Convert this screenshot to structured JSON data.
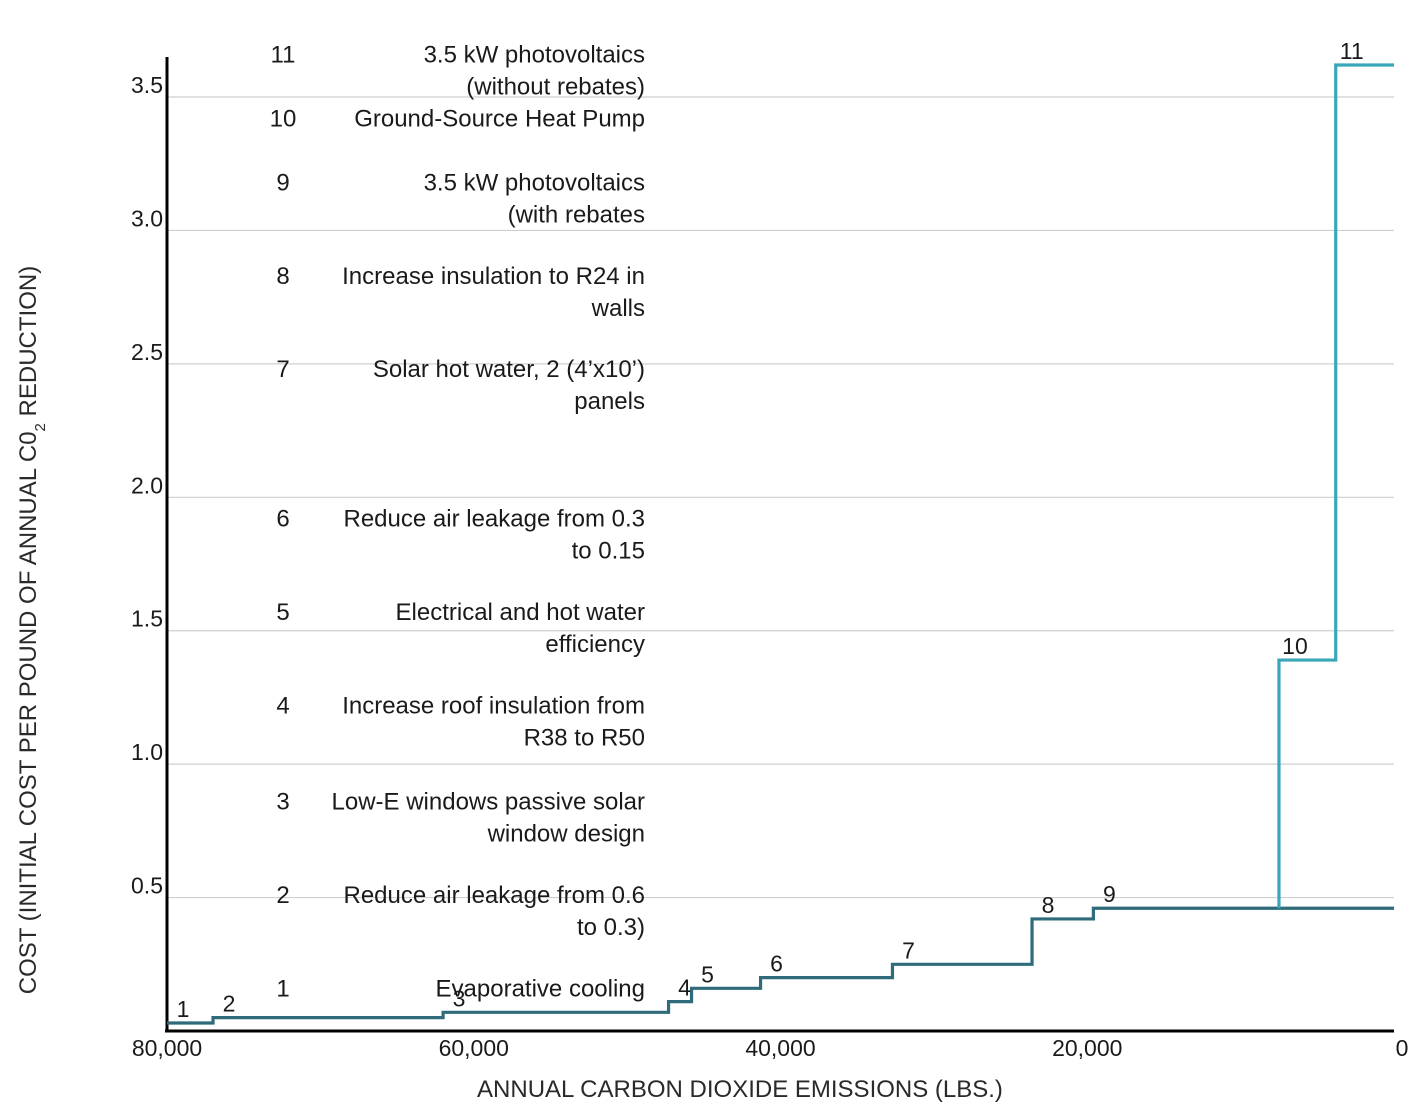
{
  "chart_data": {
    "type": "line",
    "subtype": "step",
    "title": "",
    "xlabel": "ANNUAL CARBON DIOXIDE EMISSIONS (LBS.)",
    "ylabel_parts": {
      "before": "COST (INITIAL COST PER POUND OF ANNUAL C0",
      "subscript": "2",
      "after": " REDUCTION)"
    },
    "xlim": [
      80000,
      0
    ],
    "ylim": [
      0,
      3.65
    ],
    "x_reversed": true,
    "grid": "horizontal",
    "x_ticks": [
      {
        "value": 80000,
        "label": "80,000"
      },
      {
        "value": 60000,
        "label": "60,000"
      },
      {
        "value": 40000,
        "label": "40,000"
      },
      {
        "value": 20000,
        "label": "20,000"
      },
      {
        "value": 0,
        "label": "0"
      }
    ],
    "y_ticks": [
      {
        "value": 0.5,
        "label": "0.5"
      },
      {
        "value": 1.0,
        "label": "1.0"
      },
      {
        "value": 1.5,
        "label": "1.5"
      },
      {
        "value": 2.0,
        "label": "2.0"
      },
      {
        "value": 2.5,
        "label": "2.5"
      },
      {
        "value": 3.0,
        "label": "3.0"
      },
      {
        "value": 3.5,
        "label": "3.5"
      }
    ],
    "steps": [
      {
        "label": "1",
        "x_start": 80000,
        "x_end": 77000,
        "cost": 0.03
      },
      {
        "label": "2",
        "x_start": 77000,
        "x_end": 62000,
        "cost": 0.05
      },
      {
        "label": "3",
        "x_start": 62000,
        "x_end": 47300,
        "cost": 0.07
      },
      {
        "label": "4",
        "x_start": 47300,
        "x_end": 45800,
        "cost": 0.11
      },
      {
        "label": "5",
        "x_start": 45800,
        "x_end": 41300,
        "cost": 0.16
      },
      {
        "label": "6",
        "x_start": 41300,
        "x_end": 32700,
        "cost": 0.2
      },
      {
        "label": "7",
        "x_start": 32700,
        "x_end": 23600,
        "cost": 0.25
      },
      {
        "label": "8",
        "x_start": 23600,
        "x_end": 19600,
        "cost": 0.42
      },
      {
        "label": "9",
        "x_start": 19600,
        "x_end": 0,
        "cost": 0.46
      },
      {
        "label": "10",
        "x_start": 7500,
        "x_end": 3800,
        "cost": 1.39
      },
      {
        "label": "11",
        "x_start": 3800,
        "x_end": 0,
        "cost": 3.62
      }
    ],
    "branch_color": "#3aa6b9",
    "main_color": "#2f6b7a",
    "legend": [
      {
        "num": "1",
        "lines": [
          "Evaporative cooling"
        ],
        "y": 0.13
      },
      {
        "num": "2",
        "lines": [
          "Reduce air leakage from 0.6",
          "to 0.3)"
        ],
        "y": 0.48
      },
      {
        "num": "3",
        "lines": [
          "Low-E windows passive solar",
          "window design"
        ],
        "y": 0.83
      },
      {
        "num": "4",
        "lines": [
          "Increase roof insulation from",
          "R38 to R50"
        ],
        "y": 1.19
      },
      {
        "num": "5",
        "lines": [
          "Electrical and hot water",
          "efficiency"
        ],
        "y": 1.54
      },
      {
        "num": "6",
        "lines": [
          "Reduce air leakage from 0.3",
          "to 0.15"
        ],
        "y": 1.89
      },
      {
        "num": "7",
        "lines": [
          "Solar hot water, 2 (4’x10’)",
          "panels"
        ],
        "y": 2.45
      },
      {
        "num": "8",
        "lines": [
          "Increase insulation to R24 in",
          "walls"
        ],
        "y": 2.8
      },
      {
        "num": "9",
        "lines": [
          "3.5 kW photovoltaics",
          "(with rebates"
        ],
        "y": 3.15
      },
      {
        "num": "10",
        "lines": [
          "Ground-Source Heat Pump"
        ],
        "y": 3.39
      },
      {
        "num": "11",
        "lines": [
          "3.5 kW photovoltaics",
          "(without rebates)"
        ],
        "y": 3.63
      }
    ]
  }
}
